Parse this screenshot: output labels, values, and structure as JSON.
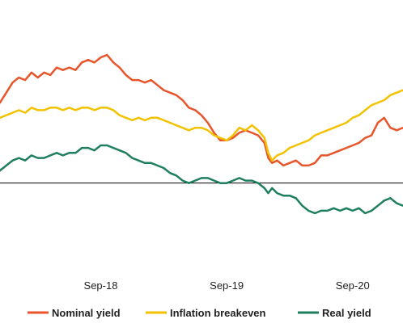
{
  "chart_data": {
    "type": "line",
    "title": "",
    "xlabel": "",
    "ylabel": "",
    "x_tick_labels": [
      "Sep-18",
      "Sep-19",
      "Sep-20"
    ],
    "x_tick_positions": [
      0.2,
      1.2,
      2.2
    ],
    "xlim": [
      -0.6,
      2.6
    ],
    "ylim": [
      -1.5,
      3.0
    ],
    "grid": false,
    "zero_line": true,
    "legend_position": "bottom",
    "series": [
      {
        "name": "Nominal yield",
        "color": "#e8552a",
        "x": [
          -0.6,
          -0.55,
          -0.5,
          -0.45,
          -0.4,
          -0.35,
          -0.3,
          -0.25,
          -0.2,
          -0.15,
          -0.1,
          -0.05,
          0.0,
          0.05,
          0.1,
          0.15,
          0.2,
          0.25,
          0.3,
          0.35,
          0.4,
          0.45,
          0.5,
          0.55,
          0.6,
          0.65,
          0.7,
          0.75,
          0.8,
          0.85,
          0.9,
          0.95,
          1.0,
          1.05,
          1.1,
          1.15,
          1.2,
          1.25,
          1.3,
          1.35,
          1.4,
          1.45,
          1.5,
          1.53,
          1.56,
          1.6,
          1.65,
          1.7,
          1.75,
          1.8,
          1.85,
          1.9,
          1.95,
          2.0,
          2.05,
          2.1,
          2.15,
          2.2,
          2.25,
          2.3,
          2.35,
          2.4,
          2.45,
          2.5,
          2.55,
          2.6
        ],
        "y": [
          1.6,
          1.8,
          2.0,
          2.1,
          2.05,
          2.2,
          2.1,
          2.2,
          2.15,
          2.3,
          2.25,
          2.3,
          2.25,
          2.4,
          2.45,
          2.4,
          2.5,
          2.55,
          2.4,
          2.3,
          2.15,
          2.05,
          2.05,
          2.0,
          2.05,
          1.95,
          1.85,
          1.8,
          1.75,
          1.65,
          1.5,
          1.45,
          1.35,
          1.2,
          1.0,
          0.85,
          0.85,
          0.9,
          1.0,
          1.05,
          1.0,
          0.95,
          0.8,
          0.5,
          0.4,
          0.45,
          0.35,
          0.4,
          0.45,
          0.35,
          0.35,
          0.4,
          0.55,
          0.55,
          0.6,
          0.65,
          0.7,
          0.75,
          0.8,
          0.9,
          0.95,
          1.2,
          1.3,
          1.1,
          1.05,
          1.1
        ]
      },
      {
        "name": "Inflation breakeven",
        "color": "#f2c200",
        "x": [
          -0.6,
          -0.55,
          -0.5,
          -0.45,
          -0.4,
          -0.35,
          -0.3,
          -0.25,
          -0.2,
          -0.15,
          -0.1,
          -0.05,
          0.0,
          0.05,
          0.1,
          0.15,
          0.2,
          0.25,
          0.3,
          0.35,
          0.4,
          0.45,
          0.5,
          0.55,
          0.6,
          0.65,
          0.7,
          0.75,
          0.8,
          0.85,
          0.9,
          0.95,
          1.0,
          1.05,
          1.1,
          1.15,
          1.2,
          1.25,
          1.3,
          1.35,
          1.4,
          1.45,
          1.5,
          1.53,
          1.56,
          1.6,
          1.65,
          1.7,
          1.75,
          1.8,
          1.85,
          1.9,
          1.95,
          2.0,
          2.05,
          2.1,
          2.15,
          2.2,
          2.25,
          2.3,
          2.35,
          2.4,
          2.45,
          2.5,
          2.55,
          2.6
        ],
        "y": [
          1.3,
          1.35,
          1.4,
          1.45,
          1.4,
          1.5,
          1.45,
          1.45,
          1.5,
          1.5,
          1.45,
          1.5,
          1.45,
          1.5,
          1.5,
          1.45,
          1.5,
          1.5,
          1.45,
          1.35,
          1.3,
          1.25,
          1.3,
          1.25,
          1.3,
          1.3,
          1.25,
          1.2,
          1.15,
          1.1,
          1.05,
          1.1,
          1.1,
          1.05,
          0.95,
          0.9,
          0.85,
          0.95,
          1.1,
          1.05,
          1.15,
          1.05,
          0.9,
          0.6,
          0.45,
          0.55,
          0.6,
          0.7,
          0.75,
          0.8,
          0.85,
          0.95,
          1.0,
          1.05,
          1.1,
          1.15,
          1.2,
          1.3,
          1.35,
          1.45,
          1.55,
          1.6,
          1.65,
          1.75,
          1.8,
          1.85
        ]
      },
      {
        "name": "Real yield",
        "color": "#1e7f5c",
        "x": [
          -0.6,
          -0.55,
          -0.5,
          -0.45,
          -0.4,
          -0.35,
          -0.3,
          -0.25,
          -0.2,
          -0.15,
          -0.1,
          -0.05,
          0.0,
          0.05,
          0.1,
          0.15,
          0.2,
          0.25,
          0.3,
          0.35,
          0.4,
          0.45,
          0.5,
          0.55,
          0.6,
          0.65,
          0.7,
          0.75,
          0.8,
          0.85,
          0.9,
          0.95,
          1.0,
          1.05,
          1.1,
          1.15,
          1.2,
          1.25,
          1.3,
          1.35,
          1.4,
          1.45,
          1.5,
          1.53,
          1.56,
          1.6,
          1.65,
          1.7,
          1.75,
          1.8,
          1.85,
          1.9,
          1.95,
          2.0,
          2.05,
          2.1,
          2.15,
          2.2,
          2.25,
          2.3,
          2.35,
          2.4,
          2.45,
          2.5,
          2.55,
          2.6
        ],
        "y": [
          0.25,
          0.35,
          0.45,
          0.5,
          0.45,
          0.55,
          0.5,
          0.5,
          0.55,
          0.6,
          0.55,
          0.6,
          0.6,
          0.7,
          0.7,
          0.65,
          0.75,
          0.75,
          0.7,
          0.65,
          0.6,
          0.5,
          0.45,
          0.4,
          0.4,
          0.35,
          0.3,
          0.2,
          0.15,
          0.05,
          0.0,
          0.05,
          0.1,
          0.1,
          0.05,
          0.0,
          0.0,
          0.05,
          0.1,
          0.05,
          0.05,
          0.0,
          -0.1,
          -0.2,
          -0.1,
          -0.2,
          -0.25,
          -0.25,
          -0.3,
          -0.45,
          -0.55,
          -0.6,
          -0.55,
          -0.55,
          -0.5,
          -0.55,
          -0.5,
          -0.55,
          -0.5,
          -0.6,
          -0.55,
          -0.45,
          -0.35,
          -0.3,
          -0.4,
          -0.45
        ]
      }
    ]
  },
  "legend": {
    "items": [
      {
        "label": "Nominal yield",
        "color": "#e8552a"
      },
      {
        "label": "Inflation breakeven",
        "color": "#f2c200"
      },
      {
        "label": "Real yield",
        "color": "#1e7f5c"
      }
    ]
  }
}
